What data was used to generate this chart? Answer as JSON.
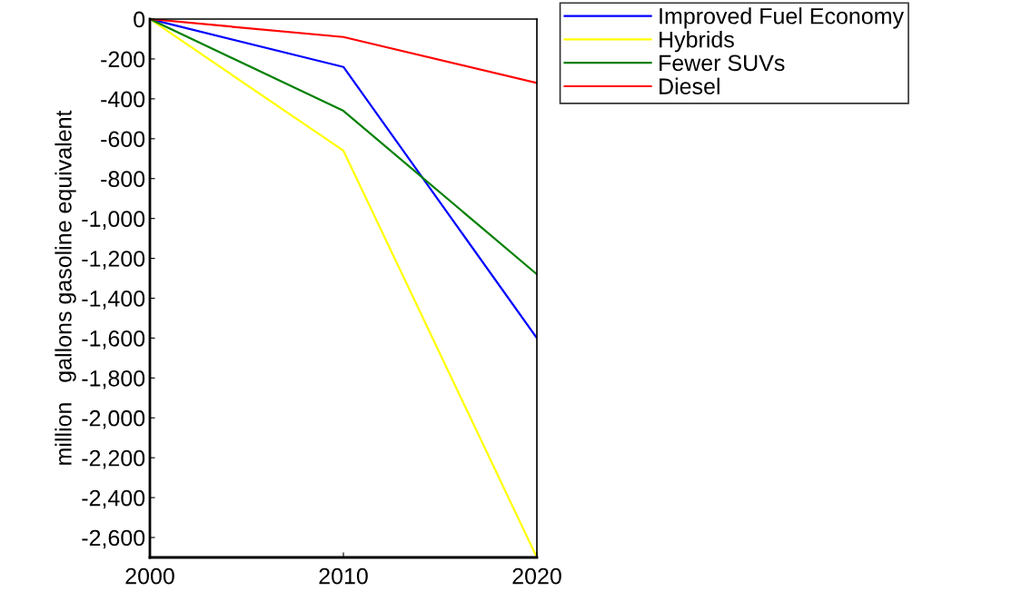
{
  "chart_data": {
    "type": "line",
    "x": [
      2000,
      2010,
      2020
    ],
    "ylabel": "million   gallons gasoline equivalent",
    "xlim": [
      2000,
      2020
    ],
    "xticks": [
      2000,
      2010,
      2020
    ],
    "ylim": [
      -2700,
      0
    ],
    "yticks": [
      {
        "value": 0,
        "label": "0"
      },
      {
        "value": -200,
        "label": "-200"
      },
      {
        "value": -400,
        "label": "-400"
      },
      {
        "value": -600,
        "label": "-600"
      },
      {
        "value": -800,
        "label": "-800"
      },
      {
        "value": -1000,
        "label": "-1,000"
      },
      {
        "value": -1200,
        "label": "-1,200"
      },
      {
        "value": -1400,
        "label": "-1,400"
      },
      {
        "value": -1600,
        "label": "-1,600"
      },
      {
        "value": -1800,
        "label": "-1,800"
      },
      {
        "value": -2000,
        "label": "-2,000"
      },
      {
        "value": -2200,
        "label": "-2,200"
      },
      {
        "value": -2400,
        "label": "-2,400"
      },
      {
        "value": -2600,
        "label": "-2,600"
      }
    ],
    "grid": false,
    "legend": "top right",
    "series": [
      {
        "name": "Improved Fuel Economy",
        "color": "#0000ff",
        "values": [
          0,
          -240,
          -1600
        ]
      },
      {
        "name": "Hybrids",
        "color": "#ffff00",
        "values": [
          0,
          -660,
          -2700
        ]
      },
      {
        "name": "Fewer SUVs",
        "color": "#008000",
        "values": [
          0,
          -460,
          -1280
        ]
      },
      {
        "name": "Diesel",
        "color": "#ff0000",
        "values": [
          0,
          -90,
          -320
        ]
      }
    ]
  }
}
